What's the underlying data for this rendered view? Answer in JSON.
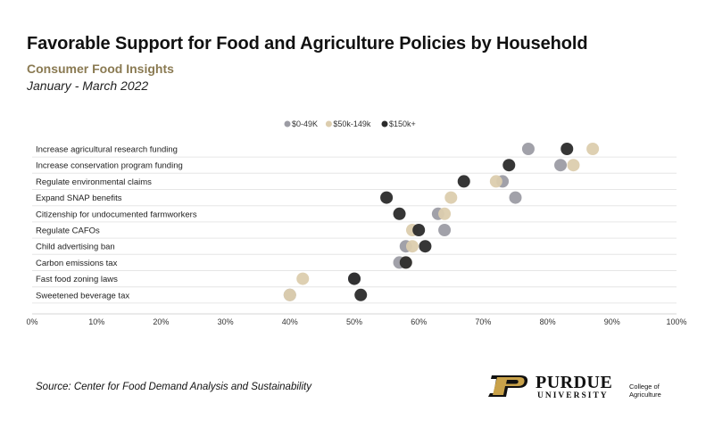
{
  "header": {
    "title": "Favorable Support for Food and Agriculture Policies by Household",
    "subtitle": "Consumer Food Insights",
    "date_range": "January - March 2022"
  },
  "footer": {
    "source": "Source:  Center for Food Demand Analysis and Sustainability",
    "logo_name": "PURDUE",
    "logo_sub": "UNIVERSITY",
    "logo_college": "College of Agriculture"
  },
  "colors": {
    "series_low": "#9c9ca4",
    "series_mid": "#dccdae",
    "series_high": "#2b2b2b",
    "gold": "#c9a24a",
    "grid": "#e6e6e6"
  },
  "chart_data": {
    "type": "scatter",
    "orientation": "horizontal-dot-plot",
    "title": "Favorable Support for Food and Agriculture Policies by Household",
    "xlim": [
      0,
      100
    ],
    "x_ticks": [
      "0%",
      "10%",
      "20%",
      "30%",
      "40%",
      "50%",
      "60%",
      "70%",
      "80%",
      "90%",
      "100%"
    ],
    "grid": true,
    "legend_position": "top-center",
    "categories": [
      "Increase agricultural research funding",
      "Increase conservation program funding",
      "Regulate environmental claims",
      "Expand SNAP benefits",
      "Citizenship for undocumented farmworkers",
      "Regulate CAFOs",
      "Child advertising ban",
      "Carbon emissions tax",
      "Fast food zoning laws",
      "Sweetened beverage tax"
    ],
    "series": [
      {
        "name": "$0-49K",
        "color": "#9c9ca4",
        "values": [
          77,
          82,
          73,
          75,
          63,
          64,
          58,
          57,
          50,
          40
        ]
      },
      {
        "name": "$50k-149k",
        "color": "#dccdae",
        "values": [
          87,
          84,
          72,
          65,
          64,
          59,
          59,
          58,
          42,
          40
        ]
      },
      {
        "name": "$150k+",
        "color": "#2b2b2b",
        "values": [
          83,
          74,
          67,
          55,
          57,
          60,
          61,
          58,
          50,
          51
        ]
      }
    ]
  }
}
